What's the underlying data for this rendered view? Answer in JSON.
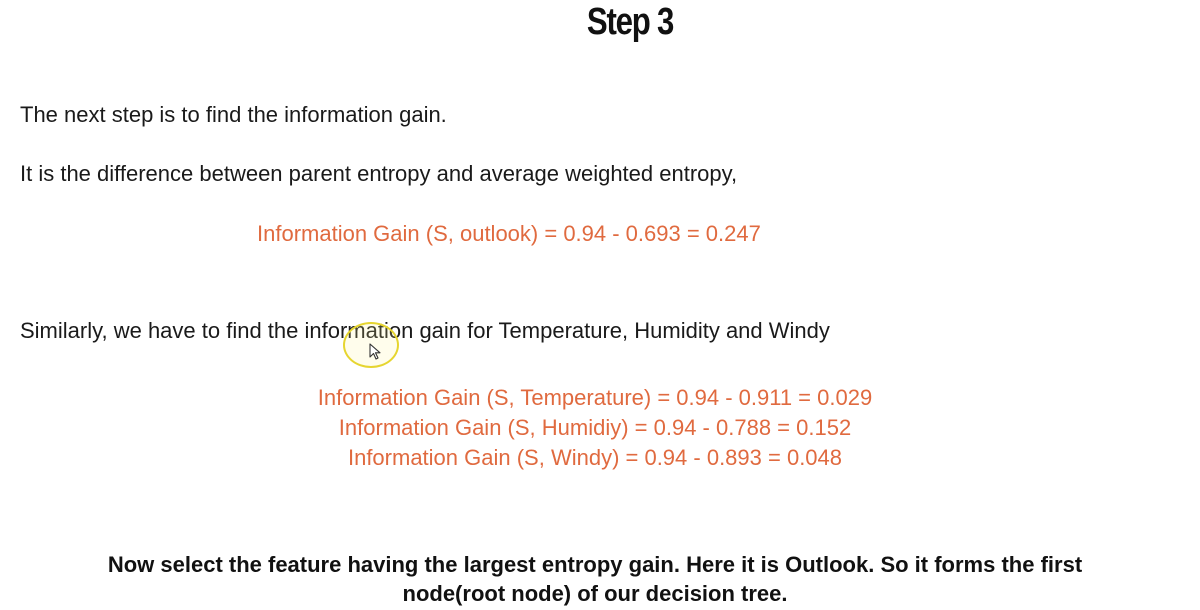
{
  "title": "Step 3",
  "intro": "The next step is to find the information gain.",
  "definition": "It is the difference between parent entropy and average weighted entropy,",
  "formula_outlook": "Information Gain (S, outlook) = 0.94 - 0.693 = 0.247",
  "similarly": "Similarly, we have to find the information gain for Temperature, Humidity and Windy",
  "formulas": [
    "Information Gain (S, Temperature) = 0.94 - 0.911 = 0.029",
    "Information Gain (S, Humidiy) = 0.94 - 0.788 = 0.152",
    "Information Gain (S, Windy) = 0.94 - 0.893 = 0.048"
  ],
  "conclusion_line1": "Now select the feature having the largest entropy gain. Here it is Outlook. So it forms the first",
  "conclusion_line2": "node(root node) of our decision tree.",
  "colors": {
    "formula": "#e06a3f",
    "text": "#1a1a1a",
    "cursor_ring": "#e6d530"
  },
  "icons": {
    "cursor": "mouse-pointer-icon"
  }
}
